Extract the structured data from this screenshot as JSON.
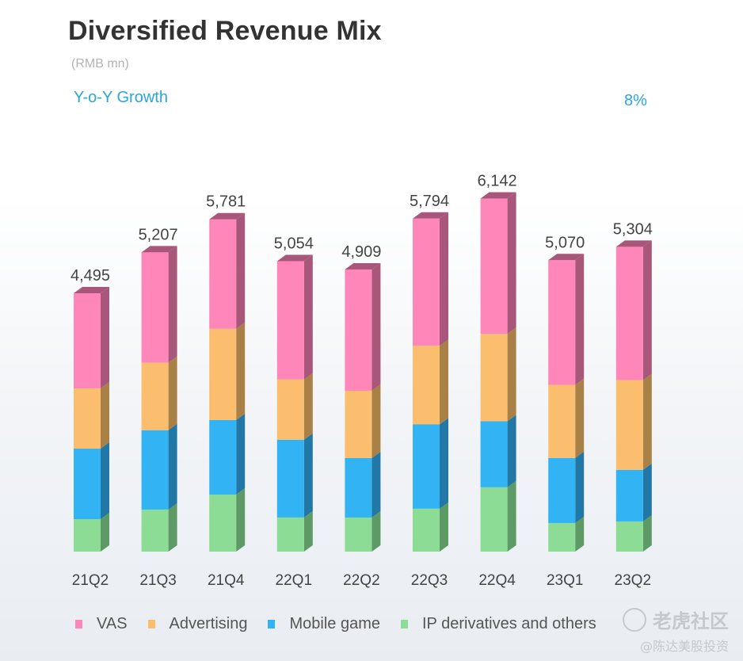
{
  "header": {
    "title": "Diversified Revenue Mix",
    "unit": "(RMB mn)",
    "yoy_label": "Y-o-Y Growth",
    "yoy_value": "8%"
  },
  "watermark": {
    "main": "老虎社区",
    "sub": "@陈达美股投资"
  },
  "chart_data": {
    "type": "bar",
    "stacked": true,
    "title": "Diversified Revenue Mix",
    "subtitle": "(RMB mn)",
    "xlabel": "",
    "ylabel": "",
    "categories": [
      "21Q2",
      "21Q3",
      "21Q4",
      "22Q1",
      "22Q2",
      "22Q3",
      "22Q4",
      "23Q1",
      "23Q2"
    ],
    "totals": [
      4495,
      5207,
      5781,
      5054,
      4909,
      5794,
      6142,
      5070,
      5304
    ],
    "total_labels": [
      "4,495",
      "5,207",
      "5,781",
      "5,054",
      "4,909",
      "5,794",
      "6,142",
      "5,070",
      "5,304"
    ],
    "series": [
      {
        "name": "IP derivatives and others",
        "color": "#8cdc96",
        "side": "#5e9a66",
        "values": [
          565,
          732,
          993,
          594,
          593,
          747,
          1120,
          497,
          525
        ]
      },
      {
        "name": "Mobile game",
        "color": "#32b3f3",
        "side": "#2178a6",
        "values": [
          1227,
          1381,
          1297,
          1353,
          1034,
          1466,
          1148,
          1133,
          898
        ]
      },
      {
        "name": "Advertising",
        "color": "#fbbe6e",
        "side": "#a98046",
        "values": [
          1048,
          1174,
          1587,
          1049,
          1172,
          1369,
          1522,
          1271,
          1561
        ]
      },
      {
        "name": "VAS",
        "color": "#fe86b8",
        "side": "#a8567a",
        "values": [
          1655,
          1920,
          1904,
          2058,
          2110,
          2212,
          2352,
          2169,
          2320
        ]
      }
    ],
    "legend": [
      "VAS",
      "Advertising",
      "Mobile game",
      "IP derivatives and others"
    ],
    "legend_position": "bottom",
    "annotations": [
      {
        "text": "Y-o-Y Growth",
        "value": "8%"
      }
    ],
    "grid": false,
    "ylim": [
      0,
      6500
    ]
  }
}
